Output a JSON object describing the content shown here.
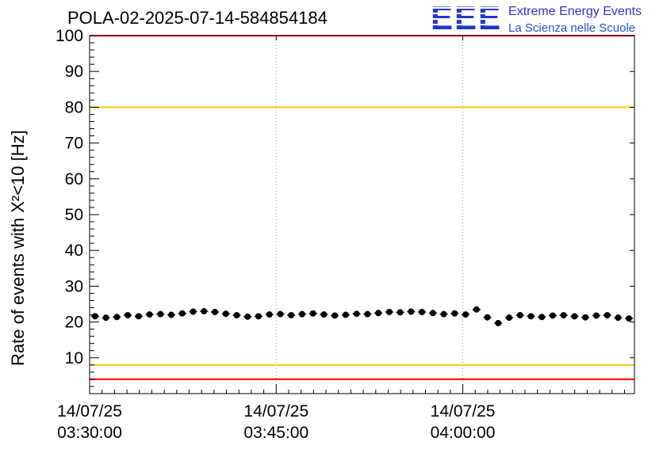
{
  "header": {
    "title": "POLA-02-2025-07-14-584854184",
    "logo": {
      "text": "EEE",
      "line1": "Extreme Energy Events",
      "line2": "La Scienza nelle Scuole"
    }
  },
  "chart_data": {
    "type": "scatter",
    "title": "POLA-02-2025-07-14-584854184",
    "ylabel": "Rate of events with X²<10 [Hz]",
    "xlabel": "",
    "ylim": [
      0,
      100
    ],
    "ytick_step": 10,
    "ytick_minor_step": 2,
    "grid": true,
    "xlim_minutes": [
      0,
      43.8
    ],
    "xticks": [
      {
        "minutes": 0,
        "date": "14/07/25",
        "time": "03:30:00"
      },
      {
        "minutes": 15,
        "date": "14/07/25",
        "time": "03:45:00"
      },
      {
        "minutes": 30,
        "date": "14/07/25",
        "time": "04:00:00"
      }
    ],
    "threshold_lines": [
      {
        "value": 100,
        "color": "#ff0000"
      },
      {
        "value": 80,
        "color": "#ffcc00"
      },
      {
        "value": 8,
        "color": "#ffcc00"
      },
      {
        "value": 4,
        "color": "#ff0000"
      }
    ],
    "series": [
      {
        "name": "event-rate",
        "color": "#000000",
        "marker": "circle",
        "error": 0.6,
        "values": [
          21.6,
          21.2,
          21.4,
          21.9,
          21.6,
          22.1,
          22.2,
          22.0,
          22.4,
          22.9,
          23.0,
          22.8,
          22.3,
          21.9,
          21.5,
          21.6,
          22.1,
          22.2,
          21.9,
          22.2,
          22.4,
          22.1,
          21.8,
          22.0,
          22.3,
          22.2,
          22.5,
          22.8,
          22.7,
          22.9,
          22.8,
          22.5,
          22.2,
          22.4,
          22.1,
          23.5,
          21.3,
          19.7,
          21.2,
          21.9,
          21.6,
          21.4,
          21.8,
          21.9,
          21.6,
          21.3,
          21.8,
          21.9,
          21.2,
          21.0
        ]
      }
    ]
  }
}
